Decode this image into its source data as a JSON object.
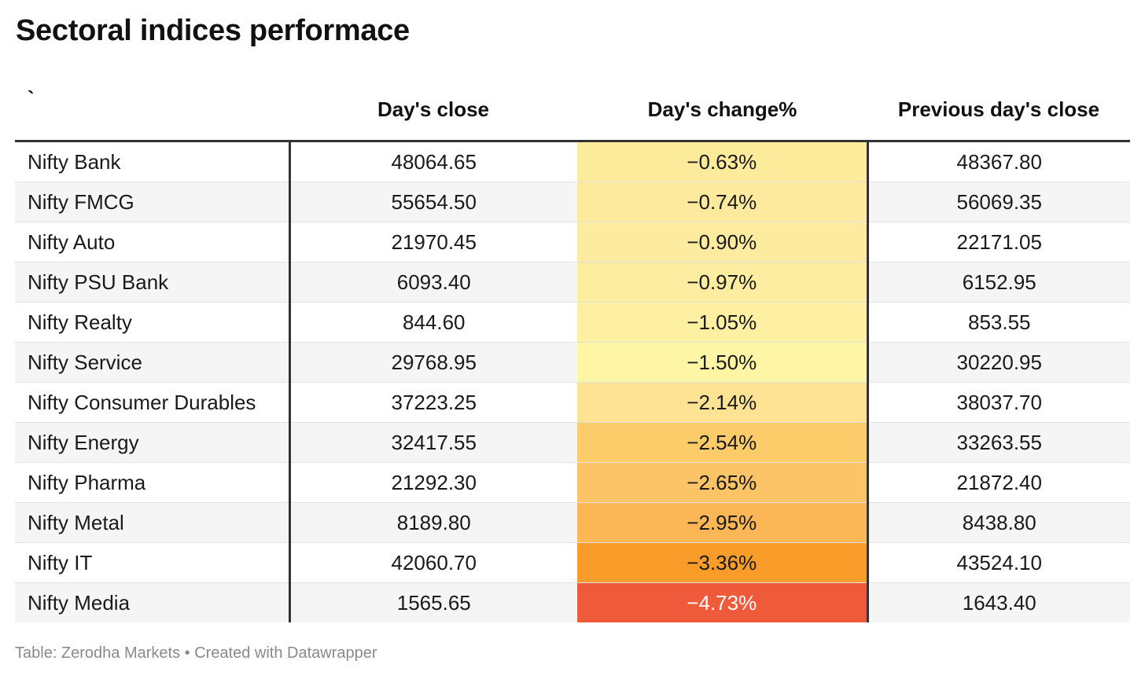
{
  "title": "Sectoral indices performace",
  "footer": "Table: Zerodha Markets • Created with Datawrapper",
  "chart_data": {
    "type": "table",
    "title": "Sectoral indices performace",
    "columns": [
      "`",
      "Day's close",
      "Day's change%",
      "Previous day's close"
    ],
    "rows": [
      {
        "name": "Nifty Bank",
        "close": "48064.65",
        "change": "−0.63%",
        "prev": "48367.80",
        "change_value": -0.63
      },
      {
        "name": "Nifty FMCG",
        "close": "55654.50",
        "change": "−0.74%",
        "prev": "56069.35",
        "change_value": -0.74
      },
      {
        "name": "Nifty Auto",
        "close": "21970.45",
        "change": "−0.90%",
        "prev": "22171.05",
        "change_value": -0.9
      },
      {
        "name": "Nifty PSU Bank",
        "close": "6093.40",
        "change": "−0.97%",
        "prev": "6152.95",
        "change_value": -0.97
      },
      {
        "name": "Nifty Realty",
        "close": "844.60",
        "change": "−1.05%",
        "prev": "853.55",
        "change_value": -1.05
      },
      {
        "name": "Nifty Service",
        "close": "29768.95",
        "change": "−1.50%",
        "prev": "30220.95",
        "change_value": -1.5
      },
      {
        "name": "Nifty Consumer Durables",
        "close": "37223.25",
        "change": "−2.14%",
        "prev": "38037.70",
        "change_value": -2.14
      },
      {
        "name": "Nifty Energy",
        "close": "32417.55",
        "change": "−2.54%",
        "prev": "33263.55",
        "change_value": -2.54
      },
      {
        "name": "Nifty Pharma",
        "close": "21292.30",
        "change": "−2.65%",
        "prev": "21872.40",
        "change_value": -2.65
      },
      {
        "name": "Nifty Metal",
        "close": "8189.80",
        "change": "−2.95%",
        "prev": "8438.80",
        "change_value": -2.95
      },
      {
        "name": "Nifty IT",
        "close": "42060.70",
        "change": "−3.36%",
        "prev": "43524.10",
        "change_value": -3.36
      },
      {
        "name": "Nifty Media",
        "close": "1565.65",
        "change": "−4.73%",
        "prev": "1643.40",
        "change_value": -4.73
      }
    ],
    "heat_colors": [
      "#fdeb9c",
      "#fdea9e",
      "#fdeca0",
      "#fdeda1",
      "#fdf0a3",
      "#fef6a5",
      "#fde393",
      "#fccb6a",
      "#fcc466",
      "#fbb656",
      "#fa9c2a",
      "#ef5a3b"
    ]
  }
}
